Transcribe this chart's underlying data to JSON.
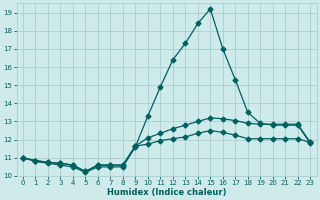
{
  "xlabel": "Humidex (Indice chaleur)",
  "x": [
    0,
    1,
    2,
    3,
    4,
    5,
    6,
    7,
    8,
    9,
    10,
    11,
    12,
    13,
    14,
    15,
    16,
    17,
    18,
    19,
    20,
    21,
    22,
    23
  ],
  "line1": [
    11.0,
    10.8,
    10.7,
    10.6,
    10.5,
    10.2,
    10.5,
    10.5,
    10.5,
    11.6,
    13.3,
    14.9,
    16.4,
    17.3,
    18.4,
    19.2,
    17.0,
    15.3,
    13.5,
    12.9,
    12.8,
    12.8,
    12.8,
    11.8
  ],
  "line2": [
    11.0,
    10.85,
    10.75,
    10.7,
    10.6,
    10.25,
    10.6,
    10.6,
    10.6,
    11.65,
    12.1,
    12.35,
    12.6,
    12.8,
    13.0,
    13.2,
    13.15,
    13.05,
    12.9,
    12.85,
    12.85,
    12.85,
    12.85,
    11.85
  ],
  "line3": [
    11.0,
    10.85,
    10.75,
    10.7,
    10.6,
    10.25,
    10.6,
    10.6,
    10.6,
    11.65,
    11.75,
    11.95,
    12.05,
    12.15,
    12.35,
    12.5,
    12.4,
    12.25,
    12.05,
    12.05,
    12.05,
    12.05,
    12.05,
    11.85
  ],
  "color": "#006060",
  "bg_color": "#ceeaea",
  "grid_color": "#aacece",
  "ylim_min": 10.0,
  "ylim_max": 19.5,
  "xlim_min": -0.5,
  "xlim_max": 23.5,
  "yticks": [
    10,
    11,
    12,
    13,
    14,
    15,
    16,
    17,
    18,
    19
  ],
  "xticks": [
    0,
    1,
    2,
    3,
    4,
    5,
    6,
    7,
    8,
    9,
    10,
    11,
    12,
    13,
    14,
    15,
    16,
    17,
    18,
    19,
    20,
    21,
    22,
    23
  ],
  "tick_fontsize": 5.0,
  "xlabel_fontsize": 6.0,
  "marker_size": 2.5,
  "line_width": 0.9
}
